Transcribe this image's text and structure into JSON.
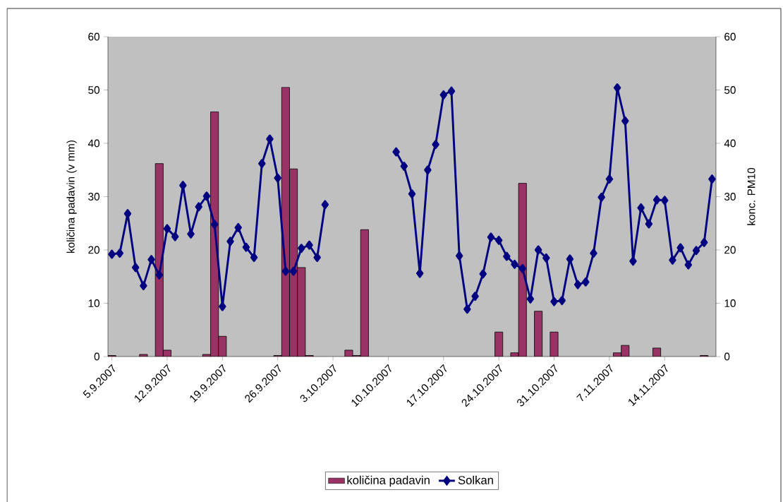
{
  "chart_data": {
    "type": "bar",
    "categories": [
      "5.9.2007",
      null,
      null,
      null,
      null,
      null,
      null,
      "12.9.2007",
      null,
      null,
      null,
      null,
      null,
      null,
      "19.9.2007",
      null,
      null,
      null,
      null,
      null,
      null,
      "26.9.2007",
      null,
      null,
      null,
      null,
      null,
      null,
      "3.10.2007",
      null,
      null,
      null,
      null,
      null,
      null,
      "10.10.2007",
      null,
      null,
      null,
      null,
      null,
      null,
      "17.10.2007",
      null,
      null,
      null,
      null,
      null,
      null,
      "24.10.2007",
      null,
      null,
      null,
      null,
      null,
      null,
      "31.10.2007",
      null,
      null,
      null,
      null,
      null,
      null,
      "7.11.2007",
      null,
      null,
      null,
      null,
      null,
      null,
      "14.11.2007",
      null,
      null,
      null,
      null,
      null,
      null
    ],
    "series": [
      {
        "name": "količina padavin",
        "color": "#993366",
        "values": [
          0.2,
          null,
          null,
          null,
          0.4,
          null,
          36.2,
          1.2,
          null,
          null,
          null,
          null,
          0.4,
          45.9,
          3.8,
          null,
          null,
          null,
          null,
          null,
          null,
          0.2,
          50.5,
          35.2,
          16.7,
          0.2,
          null,
          null,
          null,
          null,
          1.2,
          0.2,
          23.8,
          null,
          null,
          null,
          null,
          null,
          null,
          null,
          null,
          null,
          null,
          null,
          null,
          null,
          null,
          null,
          null,
          4.6,
          null,
          0.7,
          32.5,
          null,
          8.5,
          null,
          4.6,
          null,
          null,
          null,
          null,
          null,
          null,
          null,
          0.7,
          2.1,
          null,
          null,
          null,
          1.6,
          null,
          null,
          null,
          null,
          null,
          0.2,
          null
        ]
      },
      {
        "name": "Solkan",
        "type": "line",
        "axis": "y2",
        "color": "#000080",
        "values": [
          19.2,
          19.4,
          26.8,
          16.7,
          13.3,
          18.2,
          15.3,
          24.0,
          22.5,
          32.1,
          23.0,
          28.1,
          30.1,
          24.8,
          9.4,
          21.6,
          24.2,
          20.5,
          18.6,
          36.2,
          40.8,
          33.5,
          16.0,
          16.0,
          20.3,
          20.9,
          18.6,
          28.5,
          null,
          null,
          null,
          null,
          null,
          null,
          null,
          null,
          38.4,
          35.7,
          30.5,
          15.6,
          35.0,
          39.8,
          49.1,
          49.8,
          18.9,
          8.9,
          11.3,
          15.5,
          22.4,
          21.8,
          18.8,
          17.3,
          16.5,
          10.8,
          20.0,
          18.5,
          10.3,
          10.5,
          18.3,
          13.5,
          14.0,
          19.4,
          29.9,
          33.3,
          50.4,
          44.2,
          17.9,
          27.9,
          24.9,
          29.4,
          29.3,
          18.1,
          20.4,
          17.2,
          19.9,
          21.4,
          33.3
        ]
      }
    ],
    "marker": "diamond",
    "ylabel": "količina padavin (v mm)",
    "y2label": "konc. PM10",
    "ylim": [
      0,
      60
    ],
    "yticks": [
      0,
      10,
      20,
      30,
      40,
      50,
      60
    ],
    "y2lim": [
      0,
      60
    ],
    "y2ticks": [
      0,
      10,
      20,
      30,
      40,
      50,
      60
    ],
    "legend": "bottom"
  }
}
